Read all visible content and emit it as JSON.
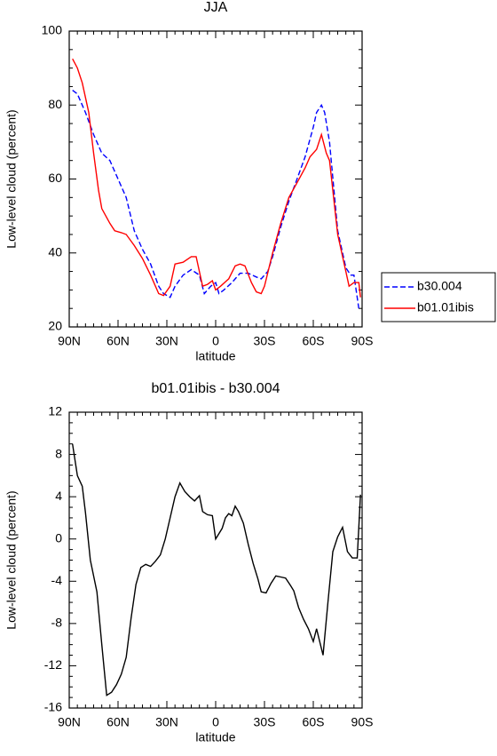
{
  "chart_data": [
    {
      "type": "line",
      "title": "JJA",
      "xlabel": "latitude",
      "ylabel": "Low-level cloud (percent)",
      "xlim": [
        90,
        -90
      ],
      "ylim": [
        20,
        100
      ],
      "xticks": [
        {
          "value": 90,
          "label": "90N"
        },
        {
          "value": 60,
          "label": "60N"
        },
        {
          "value": 30,
          "label": "30N"
        },
        0,
        {
          "value": -30,
          "label": "30S"
        },
        {
          "value": -60,
          "label": "60S"
        },
        {
          "value": -90,
          "label": "90S"
        }
      ],
      "yticks": [
        20,
        40,
        60,
        80,
        100
      ],
      "legend": "right",
      "series": [
        {
          "name": "b30.004",
          "color": "#0000ff",
          "dash": "dashed",
          "x": [
            88,
            85,
            80,
            75,
            70,
            65,
            60,
            55,
            50,
            45,
            40,
            35,
            32,
            28,
            25,
            20,
            15,
            10,
            7,
            3,
            0,
            -2,
            -5,
            -10,
            -15,
            -20,
            -25,
            -28,
            -32,
            -35,
            -40,
            -45,
            -50,
            -55,
            -60,
            -62,
            -65,
            -67,
            -70,
            -75,
            -80,
            -83,
            -85,
            -88
          ],
          "values": [
            84,
            83,
            78,
            72,
            67,
            65,
            60,
            55,
            46,
            41,
            37,
            31,
            29,
            28,
            31,
            34,
            35.5,
            34,
            29,
            31,
            32,
            29,
            30,
            32,
            34.5,
            34.5,
            33.5,
            33,
            35,
            39,
            47,
            54,
            60,
            66,
            74,
            78,
            80,
            78,
            70,
            46,
            36,
            34,
            34,
            25
          ]
        },
        {
          "name": "b01.01ibis",
          "color": "#ff0000",
          "dash": "solid",
          "x": [
            88,
            85,
            82,
            78,
            75,
            72,
            70,
            65,
            62,
            58,
            55,
            50,
            45,
            40,
            35,
            32,
            28,
            25,
            20,
            15,
            12,
            8,
            5,
            2,
            0,
            -3,
            -8,
            -12,
            -15,
            -18,
            -22,
            -25,
            -28,
            -30,
            -35,
            -40,
            -45,
            -50,
            -55,
            -58,
            -62,
            -65,
            -68,
            -70,
            -75,
            -80,
            -82,
            -85,
            -88,
            -89
          ],
          "values": [
            92.5,
            90,
            86,
            78,
            67,
            57,
            52,
            48,
            46,
            45.5,
            45,
            42,
            38.5,
            34,
            29,
            28.5,
            31,
            37,
            37.5,
            39,
            39,
            31,
            31.5,
            32.5,
            30,
            31,
            33,
            36.5,
            37,
            36.5,
            32,
            29.5,
            29,
            31,
            40,
            48,
            55,
            59,
            63,
            66,
            68,
            72,
            67,
            65,
            45,
            35,
            31,
            32,
            32,
            28
          ]
        }
      ]
    },
    {
      "type": "line",
      "title": "b01.01ibis - b30.004",
      "xlabel": "latitude",
      "ylabel": "Low-level cloud (percent)",
      "xlim": [
        90,
        -90
      ],
      "ylim": [
        -16,
        12
      ],
      "xticks": [
        {
          "value": 90,
          "label": "90N"
        },
        {
          "value": 60,
          "label": "60N"
        },
        {
          "value": 30,
          "label": "30N"
        },
        0,
        {
          "value": -30,
          "label": "30S"
        },
        {
          "value": -60,
          "label": "60S"
        },
        {
          "value": -90,
          "label": "90S"
        }
      ],
      "yticks": [
        -16,
        -12,
        -8,
        -4,
        0,
        4,
        8,
        12
      ],
      "series": [
        {
          "color": "#000000",
          "dash": "solid",
          "x": [
            88,
            85,
            82,
            80,
            77,
            73,
            70,
            67,
            64,
            61,
            58,
            55,
            52,
            49,
            46,
            43,
            40,
            37,
            34,
            31,
            28,
            25,
            22,
            19,
            16,
            13,
            10,
            8,
            5,
            2,
            0,
            -4,
            -6,
            -8,
            -10,
            -12,
            -14,
            -17,
            -20,
            -23,
            -26,
            -28,
            -31,
            -34,
            -37,
            -40,
            -43,
            -46,
            -48,
            -51,
            -54,
            -57,
            -60,
            -62,
            -66,
            -69,
            -72,
            -75,
            -78,
            -81,
            -84,
            -87,
            -89
          ],
          "values": [
            9,
            6,
            5,
            2.5,
            -2,
            -5,
            -10,
            -14.8,
            -14.5,
            -13.8,
            -12.8,
            -11.2,
            -7.5,
            -4.3,
            -2.7,
            -2.4,
            -2.6,
            -2.1,
            -1.5,
            0,
            2,
            4,
            5.3,
            4.5,
            4,
            3.6,
            4.1,
            2.6,
            2.3,
            2.2,
            0,
            1,
            2,
            2.4,
            2.2,
            3.1,
            2.6,
            1.5,
            -0.5,
            -2.3,
            -3.8,
            -5,
            -5.1,
            -4.2,
            -3.5,
            -3.6,
            -3.7,
            -4.4,
            -4.9,
            -6.5,
            -7.6,
            -8.5,
            -9.7,
            -8.5,
            -11,
            -6,
            -1.2,
            0.2,
            1.1,
            -1.2,
            -1.8,
            -1.8,
            4.2
          ]
        }
      ]
    }
  ]
}
